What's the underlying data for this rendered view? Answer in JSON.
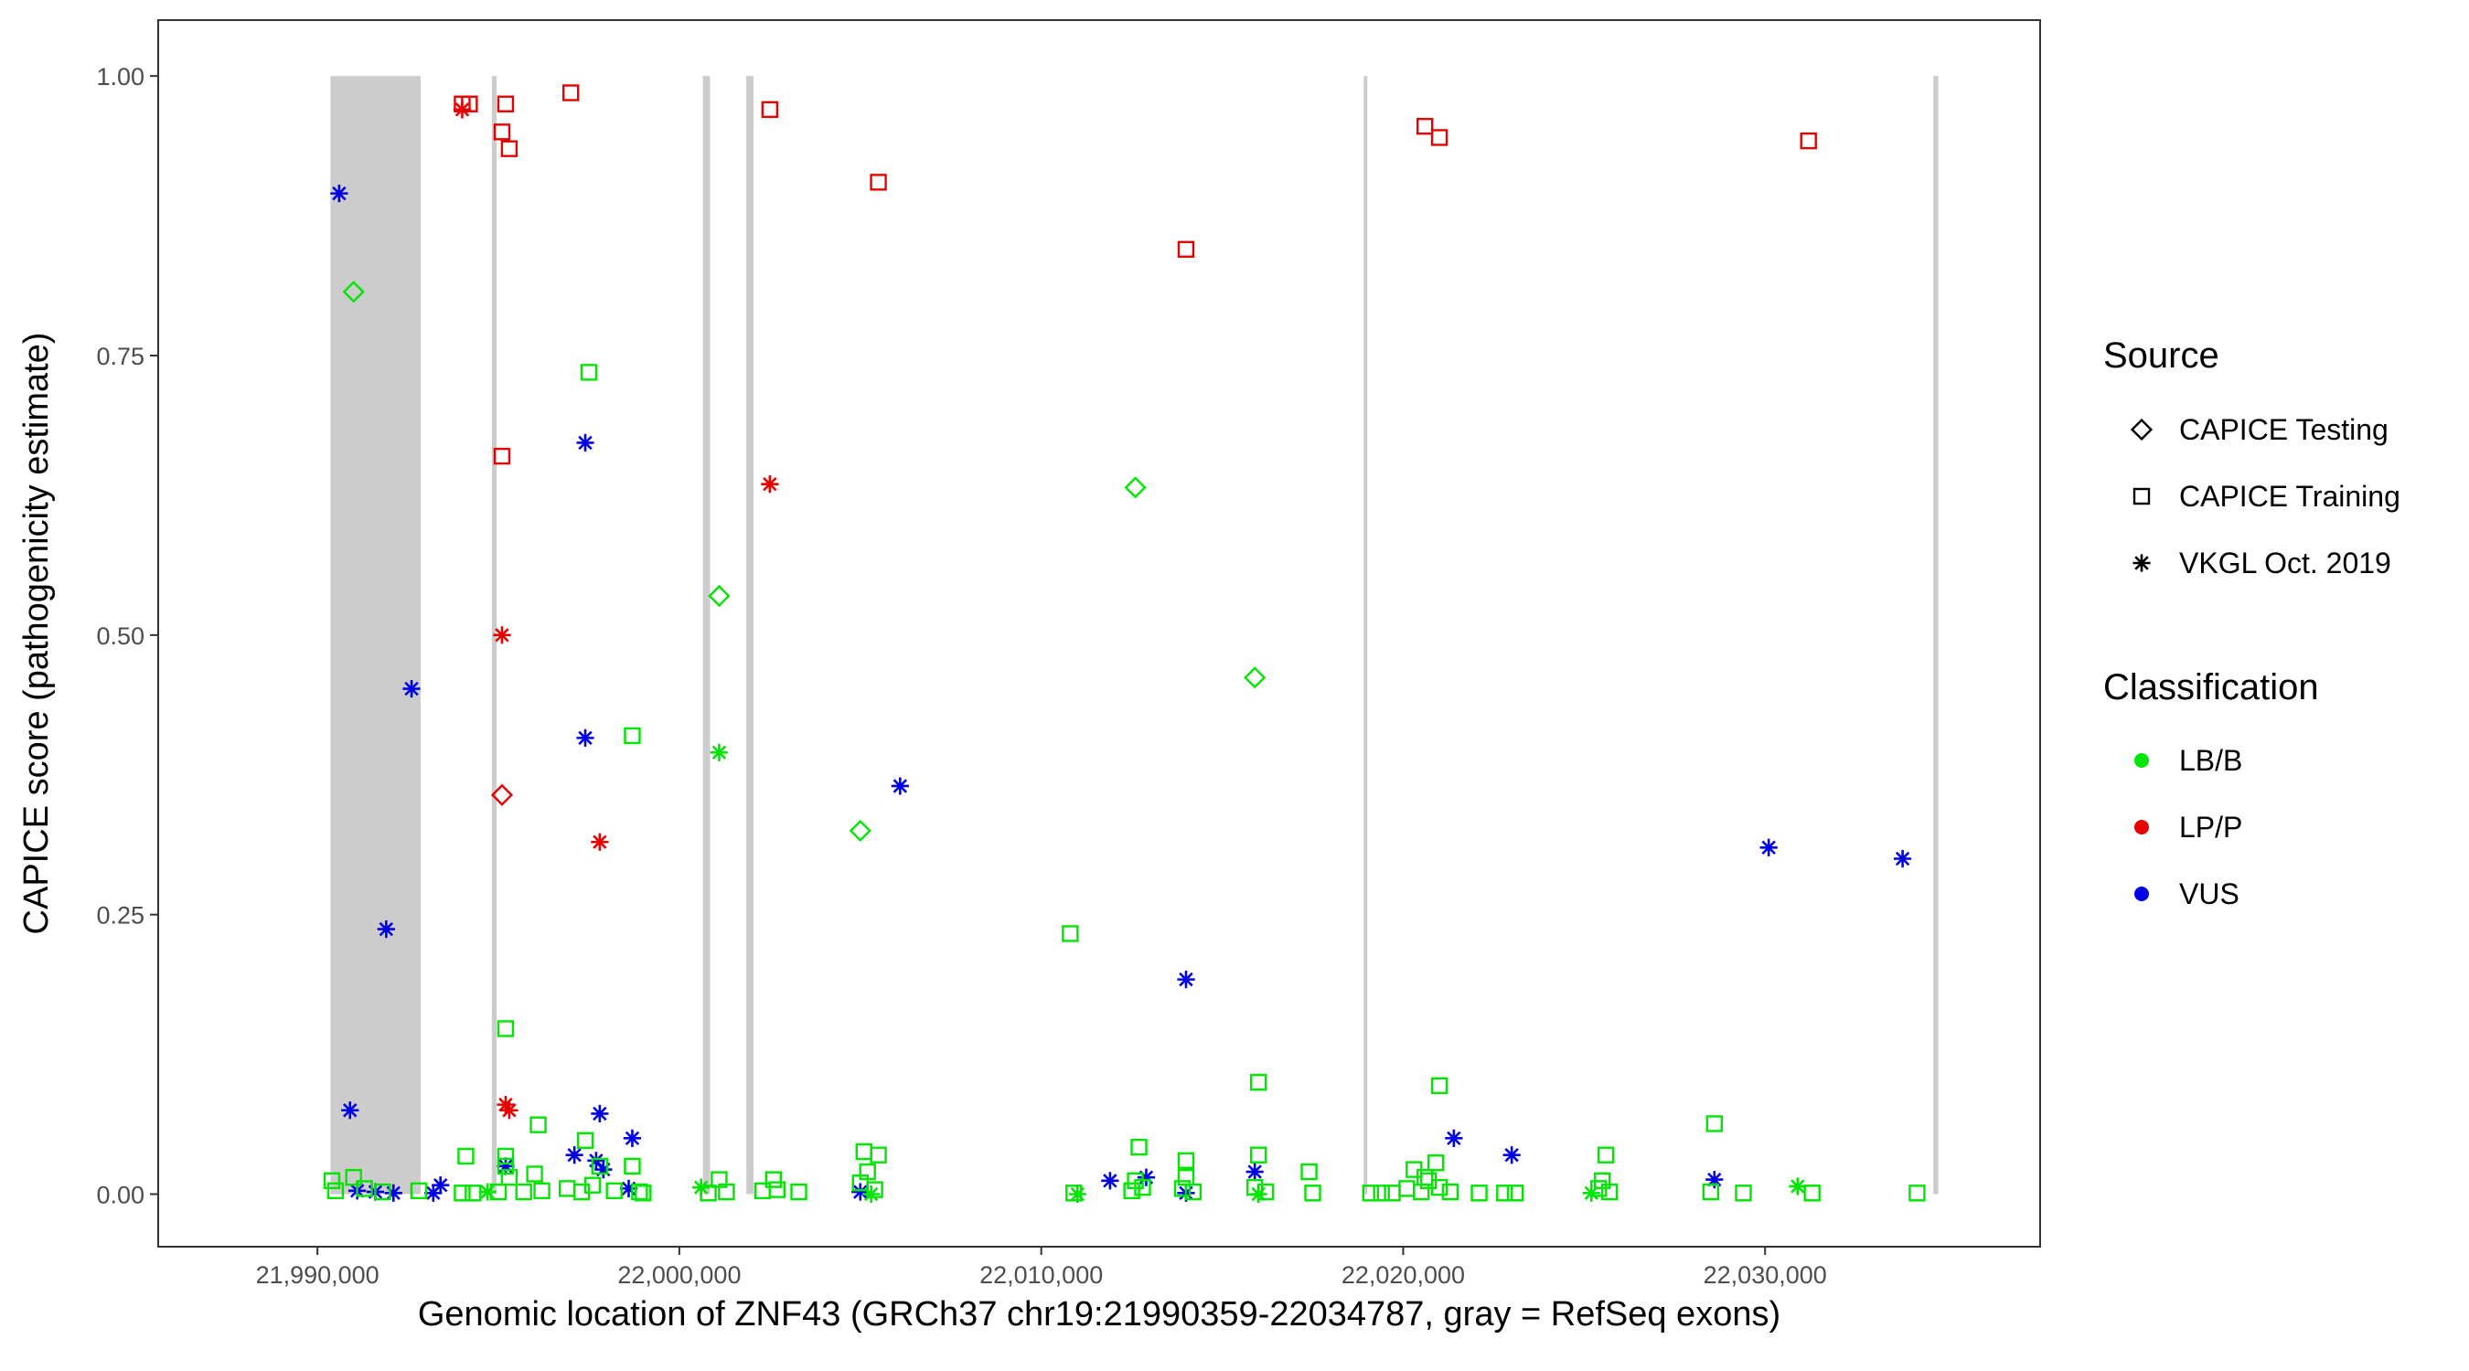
{
  "chart_data": {
    "type": "scatter",
    "title": "",
    "xlabel": "Genomic location of ZNF43 (GRCh37 chr19:21990359-22034787, gray = RefSeq exons)",
    "ylabel": "CAPICE score (pathogenicity estimate)",
    "xlim": [
      21985600,
      22037600
    ],
    "ylim": [
      -0.047,
      1.05
    ],
    "x_ticks": [
      21990000,
      22000000,
      22010000,
      22020000,
      22030000
    ],
    "x_tick_labels": [
      "21,990,000",
      "22,000,000",
      "22,010,000",
      "22,020,000",
      "22,030,000"
    ],
    "y_ticks": [
      0,
      0.25,
      0.5,
      0.75,
      1.0
    ],
    "y_tick_labels": [
      "0.00",
      "0.25",
      "0.50",
      "0.75",
      "1.00"
    ],
    "grid": false,
    "exons": [
      [
        21990359,
        21992850
      ],
      [
        21994820,
        21994950
      ],
      [
        22000650,
        22000850
      ],
      [
        22001850,
        22002050
      ],
      [
        22018930,
        22018990
      ],
      [
        22034650,
        22034787
      ]
    ],
    "legend": {
      "placement": "right",
      "source_title": "Source",
      "source_items": [
        {
          "label": "CAPICE Testing",
          "shape": "diamond"
        },
        {
          "label": "CAPICE Training",
          "shape": "square"
        },
        {
          "label": "VKGL Oct. 2019",
          "shape": "asterisk"
        }
      ],
      "class_title": "Classification",
      "class_items": [
        {
          "label": "LB/B",
          "color": "#00e600"
        },
        {
          "label": "LP/P",
          "color": "#e60000"
        },
        {
          "label": "VUS",
          "color": "#0000e6"
        }
      ]
    },
    "series": [
      {
        "source": "CAPICE Training",
        "classification": "LP/P",
        "points": [
          [
            21994000,
            0.975
          ],
          [
            21994200,
            0.975
          ],
          [
            21995100,
            0.95
          ],
          [
            21995200,
            0.975
          ],
          [
            21995300,
            0.935
          ],
          [
            21997000,
            0.985
          ],
          [
            22002500,
            0.97
          ],
          [
            22005500,
            0.905
          ],
          [
            22014000,
            0.845
          ],
          [
            22020600,
            0.955
          ],
          [
            22021000,
            0.945
          ],
          [
            22031200,
            0.942
          ],
          [
            21995100,
            0.66
          ]
        ]
      },
      {
        "source": "VKGL Oct. 2019",
        "classification": "LP/P",
        "points": [
          [
            21994000,
            0.97
          ],
          [
            22002500,
            0.635
          ],
          [
            21995100,
            0.5
          ],
          [
            21997800,
            0.315
          ],
          [
            21995200,
            0.08
          ],
          [
            21995300,
            0.075
          ]
        ]
      },
      {
        "source": "CAPICE Testing",
        "classification": "LP/P",
        "points": [
          [
            21995100,
            0.357
          ]
        ]
      },
      {
        "source": "VKGL Oct. 2019",
        "classification": "VUS",
        "points": [
          [
            21990600,
            0.895
          ],
          [
            21997400,
            0.672
          ],
          [
            21992600,
            0.452
          ],
          [
            21997400,
            0.408
          ],
          [
            22006100,
            0.365
          ],
          [
            22030100,
            0.31
          ],
          [
            22033800,
            0.3
          ],
          [
            21991900,
            0.237
          ],
          [
            22014000,
            0.192
          ],
          [
            21990900,
            0.075
          ],
          [
            21997800,
            0.072
          ],
          [
            21998700,
            0.05
          ],
          [
            22021400,
            0.05
          ],
          [
            21997100,
            0.035
          ],
          [
            22023000,
            0.035
          ],
          [
            21997700,
            0.03
          ],
          [
            21995200,
            0.025
          ],
          [
            21997900,
            0.022
          ],
          [
            22015900,
            0.02
          ],
          [
            22012900,
            0.015
          ],
          [
            22028600,
            0.013
          ],
          [
            22011900,
            0.012
          ],
          [
            21993400,
            0.008
          ],
          [
            21991100,
            0.003
          ],
          [
            21991600,
            0.002
          ],
          [
            21992100,
            0.001
          ],
          [
            21993200,
            0.001
          ],
          [
            21998600,
            0.005
          ],
          [
            22005000,
            0.002
          ],
          [
            22014000,
            0.001
          ]
        ]
      },
      {
        "source": "CAPICE Testing",
        "classification": "LB/B",
        "points": [
          [
            21991000,
            0.807
          ],
          [
            22012600,
            0.632
          ],
          [
            22001100,
            0.535
          ],
          [
            22015900,
            0.462
          ],
          [
            22005000,
            0.325
          ]
        ]
      },
      {
        "source": "VKGL Oct. 2019",
        "classification": "LB/B",
        "points": [
          [
            22001100,
            0.395
          ],
          [
            22000600,
            0.006
          ],
          [
            22030900,
            0.007
          ],
          [
            22025200,
            0.001
          ],
          [
            22011000,
            0.0
          ],
          [
            22016000,
            0.0
          ],
          [
            21994700,
            0.002
          ],
          [
            22005300,
            0.0
          ]
        ]
      },
      {
        "source": "CAPICE Training",
        "classification": "LB/B",
        "points": [
          [
            21997500,
            0.735
          ],
          [
            21998700,
            0.41
          ],
          [
            22010800,
            0.233
          ],
          [
            21995200,
            0.148
          ],
          [
            22016000,
            0.1
          ],
          [
            22021000,
            0.097
          ],
          [
            22028600,
            0.063
          ],
          [
            21996100,
            0.062
          ],
          [
            21997400,
            0.048
          ],
          [
            22012700,
            0.042
          ],
          [
            21994100,
            0.034
          ],
          [
            21995200,
            0.034
          ],
          [
            22005100,
            0.038
          ],
          [
            22005500,
            0.035
          ],
          [
            22025600,
            0.035
          ],
          [
            22016000,
            0.035
          ],
          [
            22014000,
            0.03
          ],
          [
            22020900,
            0.028
          ],
          [
            21997800,
            0.025
          ],
          [
            21998700,
            0.025
          ],
          [
            22020300,
            0.022
          ],
          [
            22017400,
            0.02
          ],
          [
            21996000,
            0.018
          ],
          [
            22002600,
            0.013
          ],
          [
            22001100,
            0.013
          ],
          [
            21990400,
            0.012
          ],
          [
            21991000,
            0.015
          ],
          [
            21995300,
            0.015
          ],
          [
            22005200,
            0.02
          ],
          [
            22012600,
            0.012
          ],
          [
            22014000,
            0.015
          ],
          [
            22020700,
            0.012
          ],
          [
            22025500,
            0.012
          ],
          [
            21990500,
            0.003
          ],
          [
            21991300,
            0.005
          ],
          [
            21991800,
            0.002
          ],
          [
            21992800,
            0.003
          ],
          [
            21994000,
            0.001
          ],
          [
            21994300,
            0.001
          ],
          [
            21995000,
            0.002
          ],
          [
            21995700,
            0.002
          ],
          [
            21996200,
            0.003
          ],
          [
            21996900,
            0.005
          ],
          [
            21997300,
            0.002
          ],
          [
            21997600,
            0.008
          ],
          [
            21998200,
            0.003
          ],
          [
            21998900,
            0.002
          ],
          [
            22000800,
            0.001
          ],
          [
            22001300,
            0.002
          ],
          [
            22002300,
            0.003
          ],
          [
            22002700,
            0.004
          ],
          [
            22003300,
            0.002
          ],
          [
            22005000,
            0.01
          ],
          [
            22005400,
            0.004
          ],
          [
            22010900,
            0.001
          ],
          [
            22012500,
            0.003
          ],
          [
            22012800,
            0.006
          ],
          [
            22013900,
            0.005
          ],
          [
            22014200,
            0.002
          ],
          [
            22015900,
            0.006
          ],
          [
            22016200,
            0.002
          ],
          [
            22017500,
            0.001
          ],
          [
            22019100,
            0.001
          ],
          [
            22019700,
            0.001
          ],
          [
            22020100,
            0.005
          ],
          [
            22020500,
            0.002
          ],
          [
            22021000,
            0.006
          ],
          [
            22021300,
            0.002
          ],
          [
            22022100,
            0.001
          ],
          [
            22022800,
            0.001
          ],
          [
            22023100,
            0.001
          ],
          [
            22025400,
            0.005
          ],
          [
            22025700,
            0.002
          ],
          [
            22028500,
            0.002
          ],
          [
            22029400,
            0.001
          ],
          [
            22031300,
            0.001
          ],
          [
            22034200,
            0.001
          ],
          [
            21995200,
            0.025
          ],
          [
            22020600,
            0.015
          ],
          [
            22019400,
            0.001
          ],
          [
            21999000,
            0.001
          ]
        ]
      }
    ]
  }
}
